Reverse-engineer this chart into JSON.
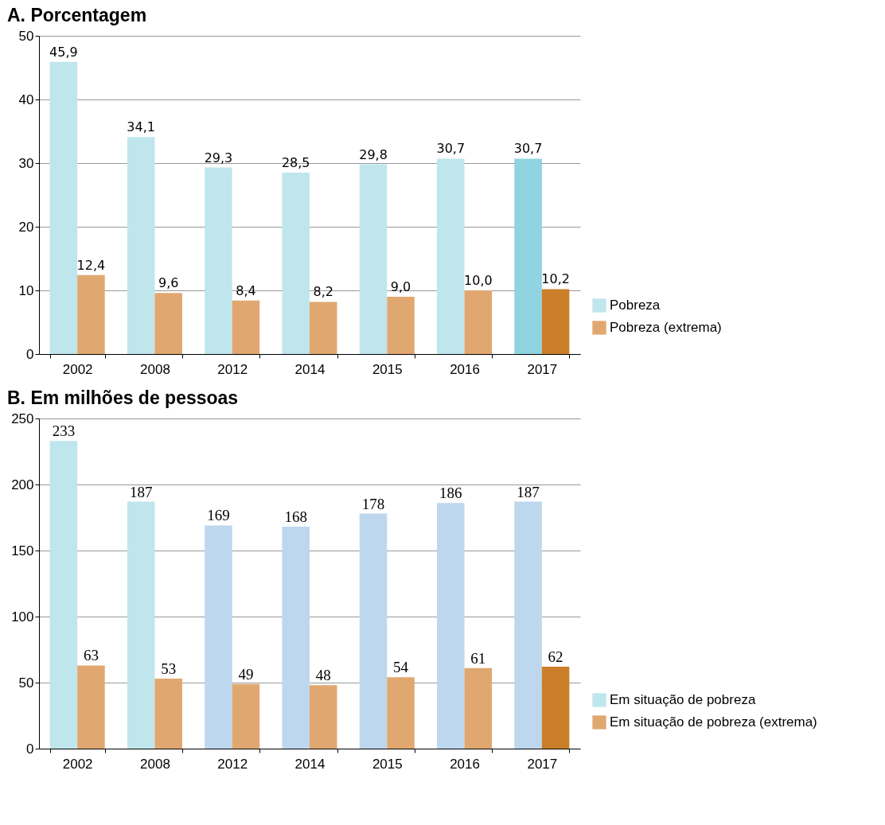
{
  "chart_data": [
    {
      "type": "bar",
      "title": "A. Porcentagem",
      "categories": [
        "2002",
        "2008",
        "2012",
        "2014",
        "2015",
        "2016",
        "2017"
      ],
      "series": [
        {
          "name": "Pobreza",
          "color": "#bfe6ec",
          "colors": [
            "#bfe6ec",
            "#bfe6ec",
            "#bfe6ec",
            "#bfe6ec",
            "#bfe6ec",
            "#bfe6ec",
            "#8fd4e0"
          ],
          "values": [
            45.9,
            34.1,
            29.3,
            28.5,
            29.8,
            30.7,
            30.7
          ],
          "value_labels": [
            "45,9",
            "34,1",
            "29,3",
            "28,5",
            "29,8",
            "30,7",
            "30,7"
          ]
        },
        {
          "name": "Pobreza (extrema)",
          "color": "#e0a870",
          "colors": [
            "#e0a870",
            "#e0a870",
            "#e0a870",
            "#e0a870",
            "#e0a870",
            "#e0a870",
            "#cc7f2a"
          ],
          "values": [
            12.4,
            9.6,
            8.4,
            8.2,
            9.0,
            10.0,
            10.2
          ],
          "value_labels": [
            "12,4",
            "9,6",
            "8,4",
            "8,2",
            "9,0",
            "10,0",
            "10,2"
          ]
        }
      ],
      "ylim": [
        0,
        50
      ],
      "yticks": [
        0,
        10,
        20,
        30,
        40,
        50
      ],
      "grid": "y",
      "legend": "right"
    },
    {
      "type": "bar",
      "title": "B. Em milhões de pessoas",
      "categories": [
        "2002",
        "2008",
        "2012",
        "2014",
        "2015",
        "2016",
        "2017"
      ],
      "series": [
        {
          "name": "Em situação de pobreza",
          "color": "#bfe6ec",
          "colors": [
            "#bfe6ec",
            "#bfe6ec",
            "#bdd7ee",
            "#bdd7ee",
            "#bdd7ee",
            "#bdd7ee",
            "#bdd7ee"
          ],
          "values": [
            233,
            187,
            169,
            168,
            178,
            186,
            187
          ]
        },
        {
          "name": "Em situação de pobreza (extrema)",
          "color": "#e0a870",
          "colors": [
            "#e0a870",
            "#e0a870",
            "#e0a870",
            "#e0a870",
            "#e0a870",
            "#e0a870",
            "#cc7f2a"
          ],
          "values": [
            63,
            53,
            49,
            48,
            54,
            61,
            62
          ]
        }
      ],
      "ylim": [
        0,
        250
      ],
      "yticks": [
        0,
        50,
        100,
        150,
        200,
        250
      ],
      "grid": "y",
      "legend": "right",
      "data_labels": true
    }
  ]
}
